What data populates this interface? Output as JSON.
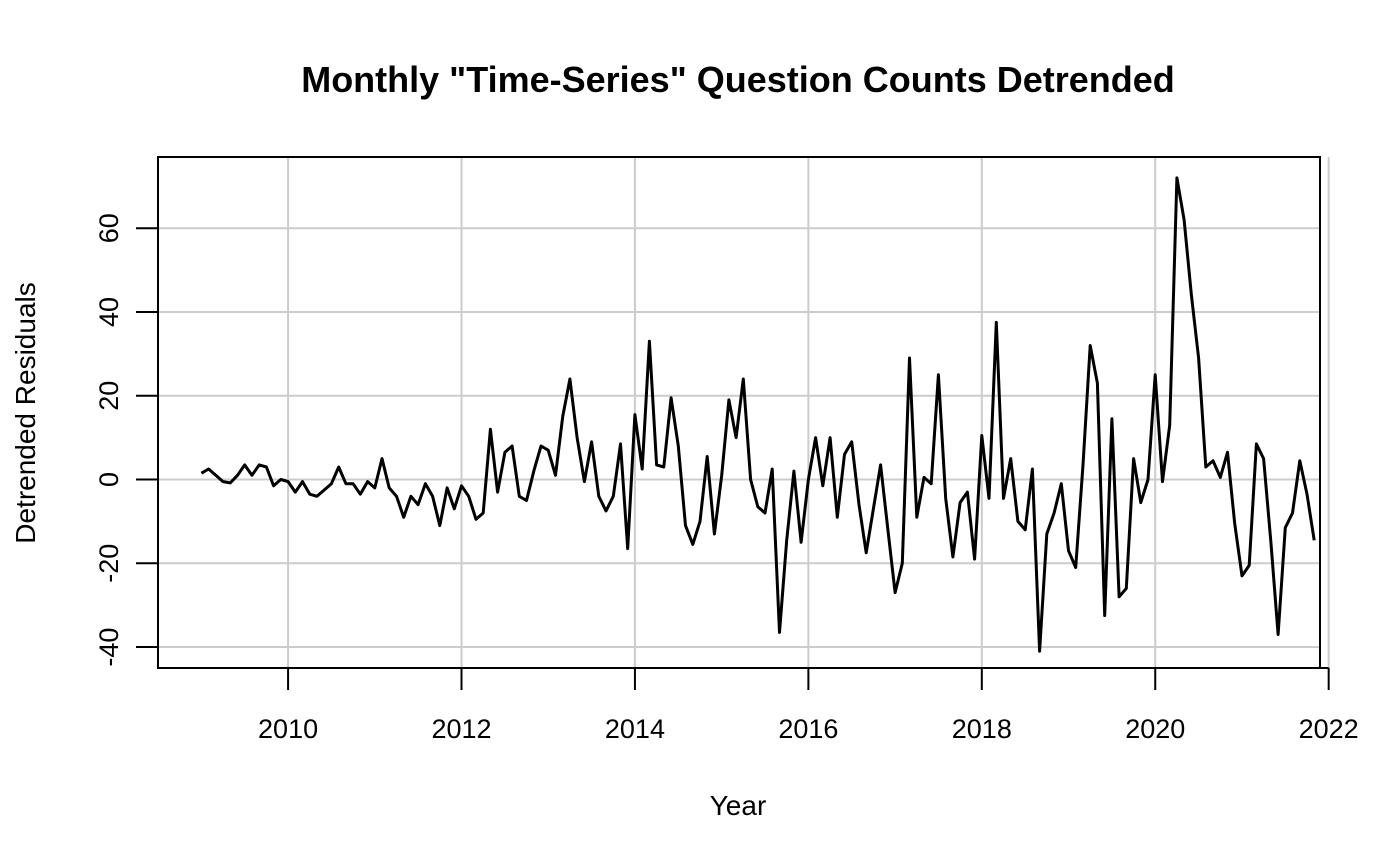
{
  "chart_data": {
    "type": "line",
    "title": "Monthly \"Time-Series\" Question Counts Detrended",
    "xlabel": "Year",
    "ylabel": "Detrended Residuals",
    "xlim": [
      2008.5,
      2021.9
    ],
    "ylim": [
      -45,
      77
    ],
    "x_ticks": [
      2010,
      2012,
      2014,
      2016,
      2018,
      2020,
      2022
    ],
    "y_ticks": [
      -40,
      -20,
      0,
      20,
      40,
      60
    ],
    "grid": true,
    "line_color": "#000000",
    "grid_color": "#cccccc",
    "series": [
      {
        "x_start": 2009.0,
        "x_step_months": 1,
        "values": [
          1.5,
          2.5,
          1,
          -0.5,
          -0.8,
          1,
          3.5,
          1,
          3.5,
          3,
          -1.5,
          0,
          -0.5,
          -3,
          -0.5,
          -3.5,
          -4,
          -2.5,
          -1,
          3,
          -1,
          -1,
          -3.5,
          -0.5,
          -2,
          5,
          -2,
          -4,
          -9,
          -4,
          -6,
          -1,
          -4,
          -11,
          -2,
          -7,
          -1.5,
          -4,
          -9.5,
          -8,
          12,
          -3,
          6.5,
          8,
          -4,
          -5,
          2,
          8,
          7,
          1,
          15,
          24,
          10,
          -0.5,
          9,
          -4,
          -7.5,
          -4,
          8.5,
          -16.5,
          15.5,
          2.5,
          33,
          3.5,
          3,
          19.5,
          8,
          -11,
          -15.5,
          -10,
          5.5,
          -13,
          1,
          19,
          10,
          24,
          0,
          -6.5,
          -8,
          2.5,
          -36.5,
          -14.5,
          2,
          -15,
          0,
          10,
          -1.5,
          10,
          -9,
          6,
          9,
          -6,
          -17.5,
          -7,
          3.5,
          -12,
          -27,
          -20,
          29,
          -9,
          0.5,
          -1,
          25,
          -4.5,
          -18.5,
          -5.5,
          -3,
          -19,
          10.5,
          -4.5,
          37.5,
          -4.5,
          5,
          -10,
          -12,
          2.5,
          -41,
          -13,
          -8,
          -1,
          -17,
          -21,
          3.5,
          32,
          23,
          -32.5,
          14.5,
          -28,
          -26,
          5,
          -5.5,
          0,
          25,
          -0.5,
          13,
          72,
          62,
          44,
          29,
          3,
          4.5,
          0.5,
          6.5,
          -10.5,
          -23,
          -20.5,
          8.5,
          5,
          -15,
          -37,
          -11.5,
          -8,
          4.5,
          -3.5,
          -14.5
        ]
      }
    ]
  }
}
